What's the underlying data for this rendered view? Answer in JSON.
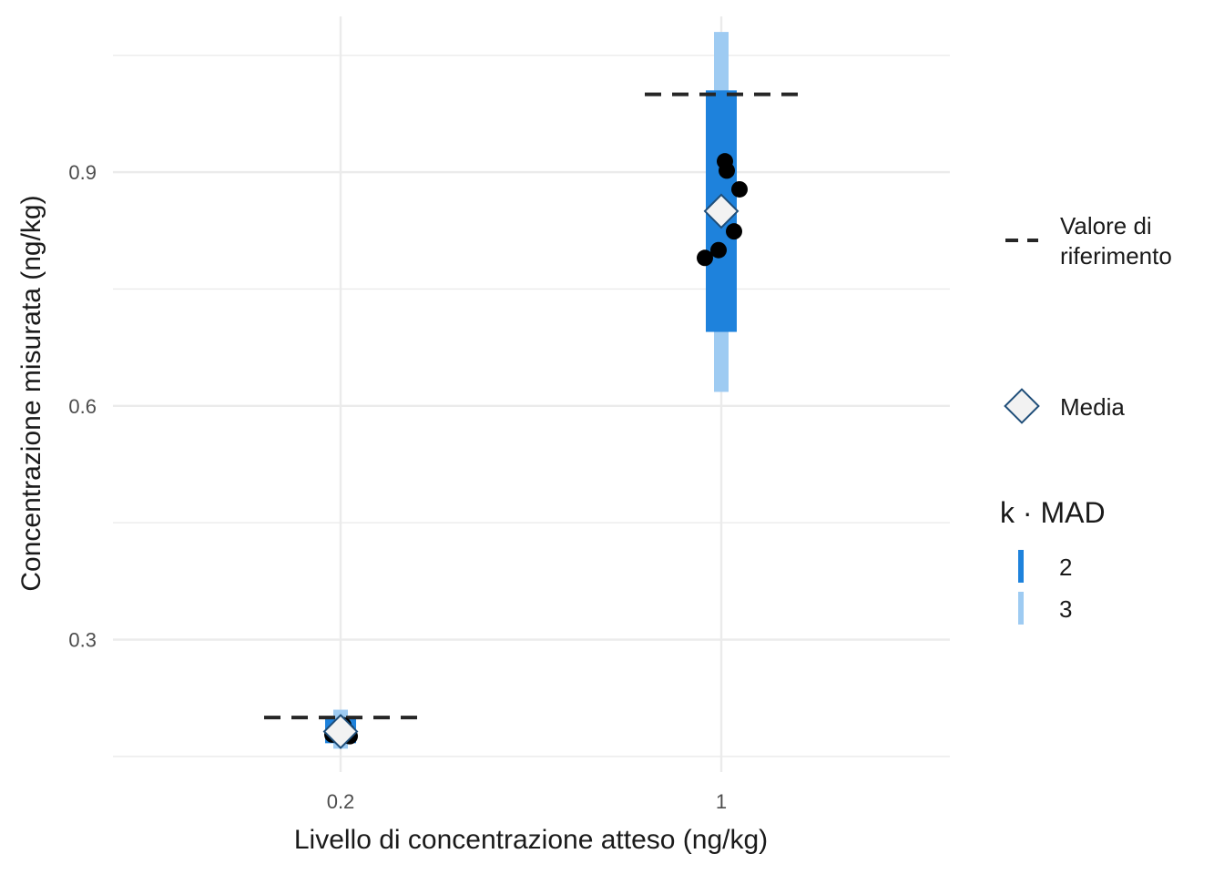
{
  "chart_data": {
    "type": "scatter",
    "xlabel": "Livello di concentrazione atteso (ng/kg)",
    "ylabel": "Concentrazione misurata (ng/kg)",
    "categories": [
      "0.2",
      "1"
    ],
    "ylim": [
      0.13,
      1.1
    ],
    "y_ticks": [
      "0.3",
      "0.6",
      "0.9"
    ],
    "y_tick_values": [
      0.3,
      0.6,
      0.9
    ],
    "grid": true,
    "legend_position": "right",
    "reference_values": [
      {
        "x": "0.2",
        "y": 0.2
      },
      {
        "x": "1",
        "y": 1.0
      }
    ],
    "means": [
      {
        "x": "0.2",
        "y": 0.182
      },
      {
        "x": "1",
        "y": 0.85
      }
    ],
    "bands": [
      {
        "x": "0.2",
        "k": "2",
        "low": 0.167,
        "high": 0.198
      },
      {
        "x": "0.2",
        "k": "3",
        "low": 0.16,
        "high": 0.21
      },
      {
        "x": "1",
        "k": "2",
        "low": 0.695,
        "high": 1.005
      },
      {
        "x": "1",
        "k": "3",
        "low": 0.618,
        "high": 1.08
      }
    ],
    "points": [
      {
        "x": "0.2",
        "y": 0.178
      },
      {
        "x": "0.2",
        "y": 0.186
      },
      {
        "x": "0.2",
        "y": 0.182
      },
      {
        "x": "0.2",
        "y": 0.176
      },
      {
        "x": "0.2",
        "y": 0.19
      },
      {
        "x": "0.2",
        "y": 0.184
      },
      {
        "x": "1",
        "y": 0.79
      },
      {
        "x": "1",
        "y": 0.8
      },
      {
        "x": "1",
        "y": 0.824
      },
      {
        "x": "1",
        "y": 0.878
      },
      {
        "x": "1",
        "y": 0.902
      },
      {
        "x": "1",
        "y": 0.914
      }
    ],
    "legend": {
      "reference_label": "Valore di riferimento",
      "reference_label_lines": [
        "Valore di",
        "riferimento"
      ],
      "mean_label": "Media",
      "k_title": "k · MAD",
      "k_items": [
        {
          "label": "2",
          "color": "#1e82dc"
        },
        {
          "label": "3",
          "color": "#9ecbf2"
        }
      ]
    },
    "colors": {
      "band_k2": "#1e82dc",
      "band_k3": "#9ecbf2",
      "point": "#000000",
      "mean_fill": "#f2f2f2",
      "mean_stroke": "#1f4e79",
      "reference": "#262626",
      "grid": "#ebebeb"
    }
  }
}
